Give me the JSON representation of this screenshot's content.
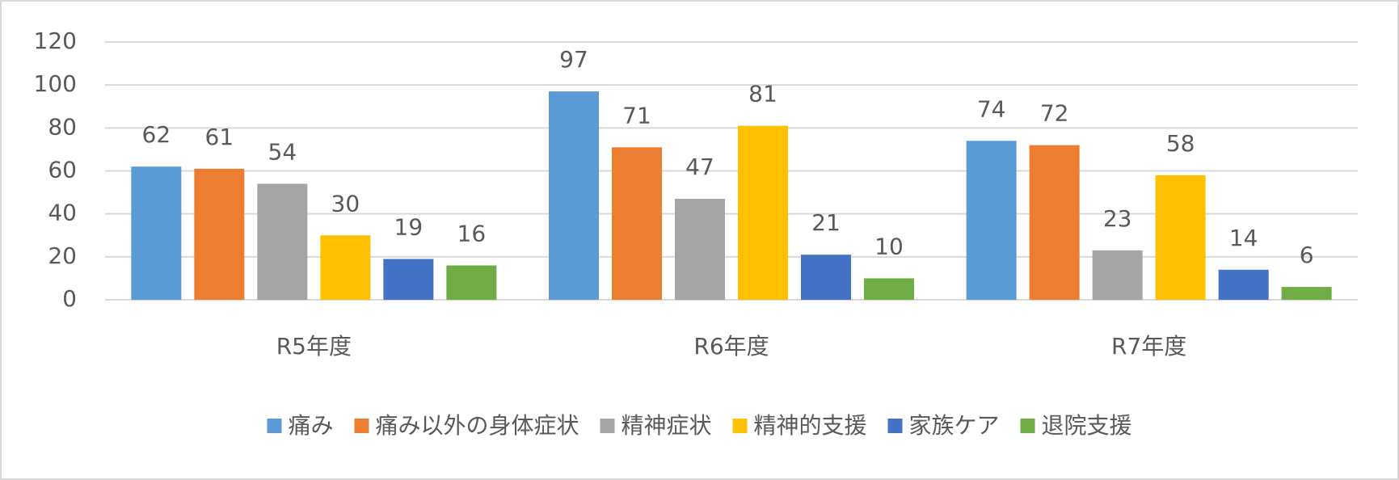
{
  "chart_data": {
    "type": "bar",
    "categories": [
      "R5年度",
      "R6年度",
      "R7年度"
    ],
    "series": [
      {
        "name": "痛み",
        "color": "#5b9bd5",
        "values": [
          62,
          97,
          74
        ]
      },
      {
        "name": "痛み以外の身体症状",
        "color": "#ed7d31",
        "values": [
          61,
          71,
          72
        ]
      },
      {
        "name": "精神症状",
        "color": "#a5a5a5",
        "values": [
          54,
          47,
          23
        ]
      },
      {
        "name": "精神的支援",
        "color": "#ffc000",
        "values": [
          30,
          81,
          58
        ]
      },
      {
        "name": "家族ケア",
        "color": "#4472c4",
        "values": [
          19,
          21,
          14
        ]
      },
      {
        "name": "退院支援",
        "color": "#70ad47",
        "values": [
          16,
          10,
          6
        ]
      }
    ],
    "ylim": [
      0,
      120
    ],
    "yticks": [
      0,
      20,
      40,
      60,
      80,
      100,
      120
    ],
    "grid": true,
    "legend": "bottom"
  }
}
